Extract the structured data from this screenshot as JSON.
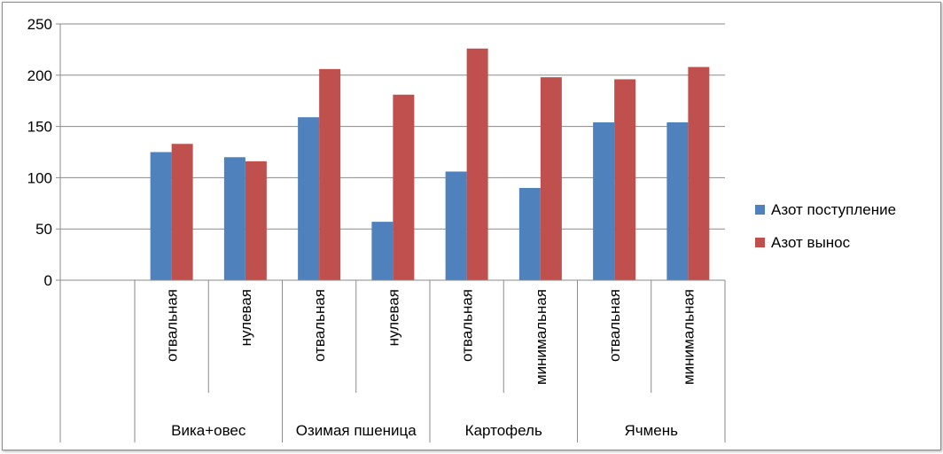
{
  "chart_data": {
    "type": "bar",
    "title": "",
    "xlabel": "",
    "ylabel": "",
    "ylim": [
      0,
      250
    ],
    "yticks": [
      0,
      50,
      100,
      150,
      200,
      250
    ],
    "grid": true,
    "legend_position": "right",
    "groups": [
      {
        "label": "Вика+овес",
        "categories": [
          "отвальная",
          "нулевая"
        ]
      },
      {
        "label": "Озимая пшеница",
        "categories": [
          "отвальная",
          "нулевая"
        ]
      },
      {
        "label": "Картофель",
        "categories": [
          "отвальная",
          "минимальная"
        ]
      },
      {
        "label": "Ячмень",
        "categories": [
          "отвальная",
          "минимальная"
        ]
      }
    ],
    "series": [
      {
        "name": "Азот  поступление",
        "color": "#4f81bd",
        "values": [
          125,
          120,
          159,
          57,
          106,
          90,
          154,
          154
        ]
      },
      {
        "name": "Азот  вынос",
        "color": "#c0504d",
        "values": [
          133,
          116,
          206,
          181,
          226,
          198,
          196,
          208
        ]
      }
    ]
  }
}
